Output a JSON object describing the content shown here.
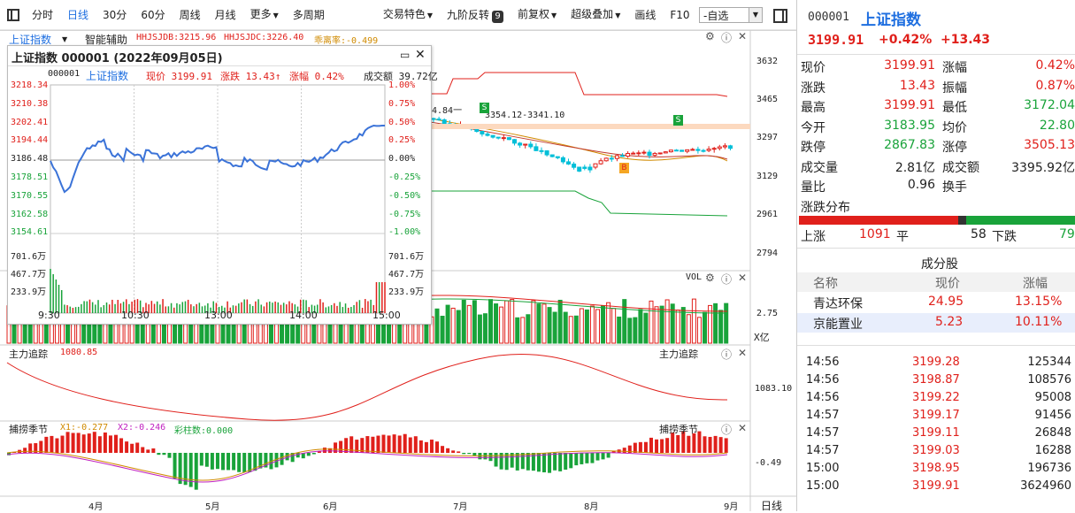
{
  "toolbar": {
    "items": [
      "分时",
      "日线",
      "30分",
      "60分",
      "周线",
      "月线",
      "更多",
      "多周期",
      "交易特色",
      "九阶反转",
      "前复权",
      "超级叠加",
      "画线",
      "F10"
    ],
    "badge": "9",
    "watchlist": "-自选"
  },
  "indicator_bar": {
    "name": "上证指数",
    "aux": "智能辅助",
    "hhjsjdb": "HHJSJDB:3215.96",
    "hhjsjdc": "HHJSJDC:3226.40",
    "deviation": "乖离率:-0.499"
  },
  "price_axis": [
    "3632",
    "3465",
    "3297",
    "3129",
    "2961",
    "2794"
  ],
  "annotations": {
    "high": "4.84一",
    "range": "3354.12-3341.10",
    "s_label": "S",
    "b_label": "B"
  },
  "volume_panel": {
    "label": "VOL",
    "axis_value": "2.75",
    "unit": "X亿"
  },
  "main_force": {
    "title": "主力追踪",
    "value": "1080.85",
    "axis_value": "1083.10"
  },
  "season": {
    "title": "捕捞季节",
    "x1": "X1:-0.277",
    "x2": "X2:-0.246",
    "bars": "彩柱数:0.000",
    "axis_value": "-0.49"
  },
  "months": [
    "4月",
    "5月",
    "6月",
    "7月",
    "8月",
    "9月"
  ],
  "period_label": "日线",
  "popup": {
    "title": "上证指数  000001 (2022年09月05日)",
    "code": "000001",
    "name": "上证指数",
    "price": "现价 3199.91",
    "change": "涨跌 13.43↑",
    "pct": "涨幅 0.42%",
    "volume_label": "成交额 39.72亿",
    "left_axis": [
      "3218.34",
      "3210.38",
      "3202.41",
      "3194.44",
      "3186.48",
      "3178.51",
      "3170.55",
      "3162.58",
      "3154.61"
    ],
    "right_axis": [
      "1.00%",
      "0.75%",
      "0.50%",
      "0.25%",
      "0.00%",
      "-0.25%",
      "-0.50%",
      "-0.75%",
      "-1.00%"
    ],
    "vol_axis": [
      "701.6万",
      "467.7万",
      "233.9万"
    ],
    "times": [
      "9:30",
      "10:30",
      "13:00",
      "14:00",
      "15:00"
    ]
  },
  "quote": {
    "code": "000001",
    "name": "上证指数",
    "price": "3199.91",
    "pct": "+0.42%",
    "change": "+13.43",
    "rows": [
      {
        "l": "现价",
        "lv": "3199.91",
        "r": "涨幅",
        "rv": "0.42%"
      },
      {
        "l": "涨跌",
        "lv": "13.43",
        "r": "振幅",
        "rv": "0.87%"
      },
      {
        "l": "最高",
        "lv": "3199.91",
        "r": "最低",
        "rv": "3172.04"
      },
      {
        "l": "今开",
        "lv": "3183.95",
        "r": "均价",
        "rv": "22.80"
      },
      {
        "l": "跌停",
        "lv": "2867.83",
        "r": "涨停",
        "rv": "3505.13"
      },
      {
        "l": "成交量",
        "lv": "2.81亿",
        "r": "成交额",
        "rv": "3395.92亿"
      },
      {
        "l": "量比",
        "lv": "0.96",
        "r": "换手",
        "rv": ""
      }
    ],
    "dist_title": "涨跌分布",
    "up_label": "上涨",
    "up_count": "1091",
    "flat_label": "平",
    "flat_count": "58",
    "down_label": "下跌",
    "down_count": "79",
    "components_title": "成分股",
    "comp_headers": [
      "名称",
      "现价",
      "涨幅"
    ],
    "components": [
      {
        "name": "青达环保",
        "price": "24.95",
        "pct": "13.15%"
      },
      {
        "name": "京能置业",
        "price": "5.23",
        "pct": "10.11%"
      }
    ],
    "ticks": [
      {
        "t": "14:56",
        "p": "3199.28",
        "v": "125344"
      },
      {
        "t": "14:56",
        "p": "3198.87",
        "v": "108576"
      },
      {
        "t": "14:56",
        "p": "3199.22",
        "v": "95008"
      },
      {
        "t": "14:57",
        "p": "3199.17",
        "v": "91456"
      },
      {
        "t": "14:57",
        "p": "3199.11",
        "v": "26848"
      },
      {
        "t": "14:57",
        "p": "3199.03",
        "v": "16288"
      },
      {
        "t": "15:00",
        "p": "3198.95",
        "v": "196736"
      },
      {
        "t": "15:00",
        "p": "3199.91",
        "v": "3624960"
      }
    ]
  },
  "colors": {
    "up": "#e0201b",
    "down": "#19a33a",
    "accent": "#1f6fe0",
    "line": "#3b73d8"
  }
}
